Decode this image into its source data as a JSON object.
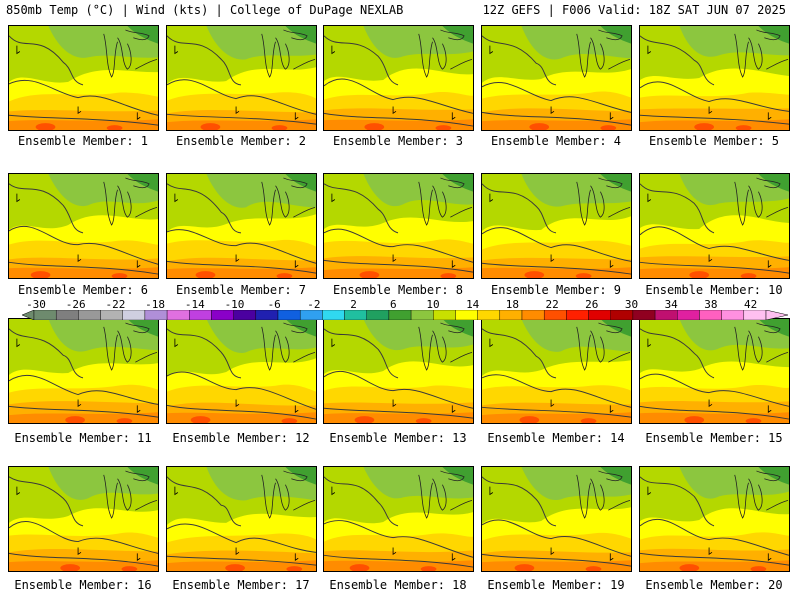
{
  "header": {
    "left_title": "850mb Temp (°C) | Wind (kts) | College of DuPage NEXLAB",
    "right_title": "12Z GEFS | F006 Valid: 18Z SAT JUN 07 2025"
  },
  "panels": [
    {
      "label": "Ensemble Member: 1"
    },
    {
      "label": "Ensemble Member: 2"
    },
    {
      "label": "Ensemble Member: 3"
    },
    {
      "label": "Ensemble Member: 4"
    },
    {
      "label": "Ensemble Member: 5"
    },
    {
      "label": "Ensemble Member: 6"
    },
    {
      "label": "Ensemble Member: 7"
    },
    {
      "label": "Ensemble Member: 8"
    },
    {
      "label": "Ensemble Member: 9"
    },
    {
      "label": "Ensemble Member: 10"
    },
    {
      "label": "Ensemble Member: 11"
    },
    {
      "label": "Ensemble Member: 12"
    },
    {
      "label": "Ensemble Member: 13"
    },
    {
      "label": "Ensemble Member: 14"
    },
    {
      "label": "Ensemble Member: 15"
    },
    {
      "label": "Ensemble Member: 16"
    },
    {
      "label": "Ensemble Member: 17"
    },
    {
      "label": "Ensemble Member: 18"
    },
    {
      "label": "Ensemble Member: 19"
    },
    {
      "label": "Ensemble Member: 20"
    }
  ],
  "colorbar": {
    "tick_labels": [
      "-30",
      "-26",
      "-22",
      "-18",
      "-14",
      "-10",
      "-6",
      "-2",
      "2",
      "6",
      "10",
      "14",
      "18",
      "22",
      "26",
      "30",
      "34",
      "38",
      "42"
    ],
    "colors": [
      "#6e8b6e",
      "#7f7f7f",
      "#999999",
      "#b3b3b3",
      "#cfcfe0",
      "#b08fd8",
      "#e070e0",
      "#c040e0",
      "#8a00c8",
      "#4b00a0",
      "#2020b0",
      "#1060e0",
      "#30a0f0",
      "#30d8f0",
      "#20c0a0",
      "#20a060",
      "#40a030",
      "#8cc63f",
      "#c8e000",
      "#ffff00",
      "#ffd700",
      "#ffb000",
      "#ff8c00",
      "#ff5000",
      "#ff2000",
      "#e00000",
      "#b00000",
      "#900020",
      "#c01070",
      "#e020a0",
      "#ff60c0",
      "#ff90e0",
      "#ffc0f0"
    ]
  },
  "field_colors": {
    "green": "#8cc63f",
    "lime": "#b4d800",
    "yellow": "#ffff00",
    "gold": "#ffd700",
    "orange": "#ffb000",
    "dark_orange": "#ff8c00",
    "red_orange": "#ff5000",
    "dark_green": "#40a030"
  }
}
